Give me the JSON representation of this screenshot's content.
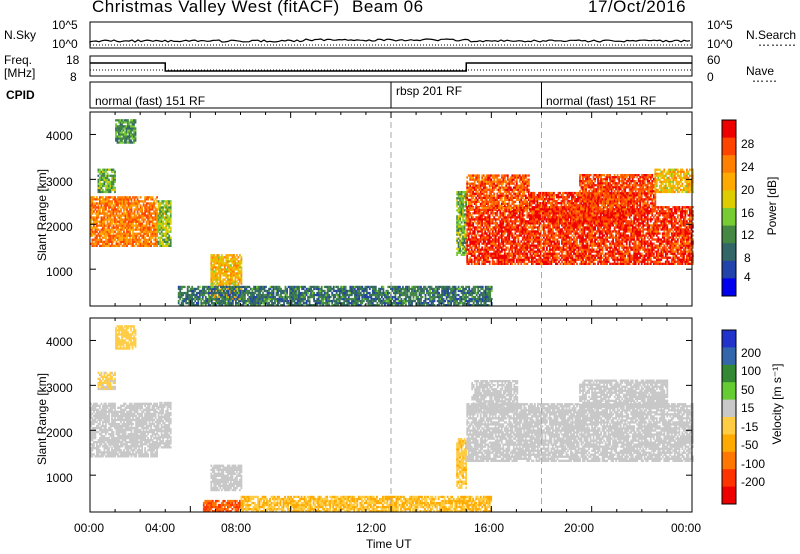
{
  "header": {
    "station": "Christmas Valley West (fitACF)",
    "beam": "Beam 06",
    "date": "17/Oct/2016"
  },
  "panels": {
    "nsky_label": "N.Sky",
    "nsearch_label": "N.Search",
    "freq_label": "Freq.",
    "freq_unit": "[MHz]",
    "nave_label": "Nave",
    "cpid_label": "CPID",
    "nsky_ticks": [
      "10^5",
      "10^0"
    ],
    "nsearch_ticks": [
      "10^5",
      "10^0"
    ],
    "freq_ticks": [
      "18",
      "8"
    ],
    "nave_ticks": [
      "60",
      "0"
    ],
    "cpid_segments": [
      {
        "label": "normal (fast) 151 RF",
        "start_h": 0,
        "end_h": 12
      },
      {
        "label": "rbsp 201 RF",
        "start_h": 12,
        "end_h": 18
      },
      {
        "label": "normal (fast) 151 RF",
        "start_h": 18,
        "end_h": 24
      }
    ],
    "freq_steps": [
      {
        "start_h": 0,
        "end_h": 3,
        "mhz": 14.5
      },
      {
        "start_h": 3,
        "end_h": 15,
        "mhz": 10.5
      },
      {
        "start_h": 15,
        "end_h": 24,
        "mhz": 14.5
      }
    ]
  },
  "axes": {
    "range_label": "Slant Range [km]",
    "range_ticks": [
      "4000",
      "3000",
      "2000",
      "1000"
    ],
    "time_label": "Time UT",
    "time_ticks": [
      "00:00",
      "04:00",
      "08:00",
      "12:00",
      "16:00",
      "20:00",
      "00:00"
    ]
  },
  "colorbars": {
    "power": {
      "label": "Power [dB]",
      "ticks": [
        "28",
        "24",
        "20",
        "16",
        "12",
        "8",
        "4"
      ],
      "colors": [
        "#ee0000",
        "#ff4400",
        "#ff7f00",
        "#ffaa00",
        "#ddcc00",
        "#77cc33",
        "#448844",
        "#336666",
        "#2244aa",
        "#0000ee"
      ]
    },
    "velocity": {
      "label": "Velocity [m s⁻¹]",
      "ticks": [
        "200",
        "100",
        "50",
        "15",
        "-15",
        "-50",
        "-100",
        "-200"
      ],
      "colors": [
        "#2233cc",
        "#3366aa",
        "#338833",
        "#66cc33",
        "#c8c8c8",
        "#ffcc44",
        "#ffaa00",
        "#ff7700",
        "#ff3300",
        "#ee0000"
      ]
    }
  },
  "chart_data": {
    "type": "heatmap",
    "title": "Christmas Valley West (fitACF) Beam 06",
    "xlabel": "Time UT",
    "ylabel": "Slant Range [km]",
    "xlim_hours": [
      0,
      24
    ],
    "ylim_km": [
      180,
      4500
    ],
    "dashed_vlines_hours": [
      12,
      18
    ],
    "power_regions": [
      {
        "t0": 0.0,
        "t1": 2.7,
        "r0": 1500,
        "r1": 2600,
        "db": 24
      },
      {
        "t0": 0.3,
        "t1": 1.0,
        "r0": 2700,
        "r1": 3200,
        "db": 14
      },
      {
        "t0": 1.0,
        "t1": 1.8,
        "r0": 3800,
        "r1": 4300,
        "db": 12
      },
      {
        "t0": 2.7,
        "t1": 3.2,
        "r0": 1500,
        "r1": 2500,
        "db": 16
      },
      {
        "t0": 4.8,
        "t1": 6.0,
        "r0": 300,
        "r1": 1300,
        "db": 20
      },
      {
        "t0": 3.5,
        "t1": 16.0,
        "r0": 180,
        "r1": 600,
        "db": 10
      },
      {
        "t0": 14.6,
        "t1": 15.0,
        "r0": 1300,
        "r1": 2700,
        "db": 14
      },
      {
        "t0": 15.0,
        "t1": 24.0,
        "r0": 1100,
        "r1": 2400,
        "db": 28
      },
      {
        "t0": 15.0,
        "t1": 17.5,
        "r0": 2300,
        "r1": 3100,
        "db": 26
      },
      {
        "t0": 17.5,
        "t1": 21.5,
        "r0": 2000,
        "r1": 2700,
        "db": 28
      },
      {
        "t0": 19.5,
        "t1": 22.5,
        "r0": 2400,
        "r1": 3100,
        "db": 27
      },
      {
        "t0": 22.5,
        "t1": 24.0,
        "r0": 2700,
        "r1": 3200,
        "db": 20
      }
    ],
    "velocity_regions": [
      {
        "t0": 0.0,
        "t1": 2.7,
        "r0": 1400,
        "r1": 2600,
        "v": 0
      },
      {
        "t0": 0.3,
        "t1": 1.0,
        "r0": 2900,
        "r1": 3300,
        "v": -20
      },
      {
        "t0": 1.0,
        "t1": 1.8,
        "r0": 3800,
        "r1": 4300,
        "v": -30
      },
      {
        "t0": 2.7,
        "t1": 3.2,
        "r0": 1600,
        "r1": 2600,
        "v": 0
      },
      {
        "t0": 4.8,
        "t1": 6.0,
        "r0": 650,
        "r1": 1200,
        "v": 0
      },
      {
        "t0": 4.5,
        "t1": 6.0,
        "r0": 180,
        "r1": 450,
        "v": -200
      },
      {
        "t0": 6.0,
        "t1": 16.0,
        "r0": 180,
        "r1": 500,
        "v": -50
      },
      {
        "t0": 14.6,
        "t1": 15.0,
        "r0": 700,
        "r1": 1800,
        "v": -40
      },
      {
        "t0": 15.0,
        "t1": 24.0,
        "r0": 1300,
        "r1": 2600,
        "v": 0
      },
      {
        "t0": 15.2,
        "t1": 17.0,
        "r0": 2400,
        "r1": 3100,
        "v": 0
      },
      {
        "t0": 19.5,
        "t1": 23.0,
        "r0": 2500,
        "r1": 3100,
        "v": 0
      }
    ]
  }
}
